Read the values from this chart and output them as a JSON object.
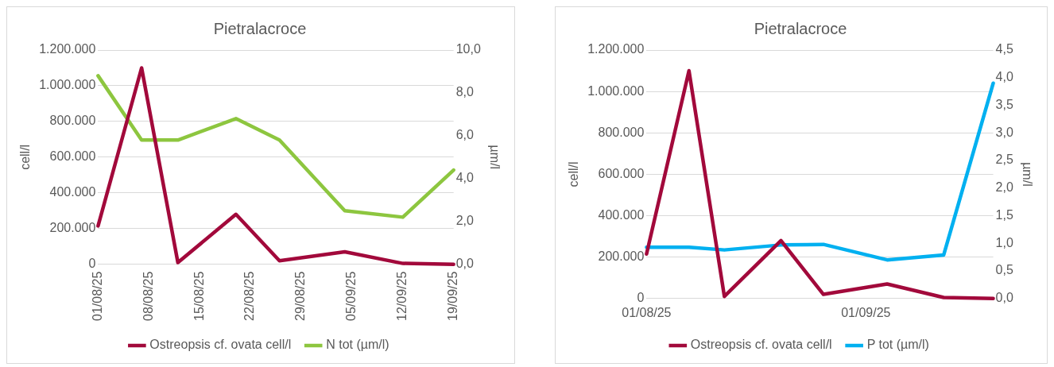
{
  "chart_data": [
    {
      "type": "line",
      "title": "Pietralacroce",
      "ylabel": "cell/l",
      "y2label": "µm/l",
      "x": [
        "--08-01",
        "--08-07",
        "--08-12",
        "--08-20",
        "--08-26",
        "--09-04",
        "--09-12",
        "--09-19"
      ],
      "series": [
        {
          "name": "Ostreopsis cf. ovata cell/l",
          "color": "#a2093b",
          "values": [
            215000,
            1100000,
            10000,
            280000,
            20000,
            70000,
            5000,
            0
          ]
        },
        {
          "name": "N tot (µm/l)",
          "color": "#8dc63f",
          "axis": "y2",
          "values": [
            8.8,
            5.8,
            5.8,
            6.8,
            5.8,
            2.5,
            2.2,
            4.4
          ]
        }
      ],
      "xlim": [
        "--08-01",
        "--09-19"
      ],
      "xticks": [
        {
          "value": "--08-01",
          "label": "01/08/25"
        },
        {
          "value": "--08-08",
          "label": "08/08/25"
        },
        {
          "value": "--08-15",
          "label": "15/08/25"
        },
        {
          "value": "--08-22",
          "label": "22/08/25"
        },
        {
          "value": "--08-29",
          "label": "29/08/25"
        },
        {
          "value": "--09-05",
          "label": "05/09/25"
        },
        {
          "value": "--09-12",
          "label": "12/09/25"
        },
        {
          "value": "--09-19",
          "label": "19/09/25"
        }
      ],
      "ylim": [
        0,
        1200000
      ],
      "yticks": [
        0,
        {
          "value": 200000,
          "label": "200.000"
        },
        {
          "value": 400000,
          "label": "400.000"
        },
        {
          "value": 600000,
          "label": "600.000"
        },
        {
          "value": 800000,
          "label": "800.000"
        },
        {
          "value": 1000000,
          "label": "1.000.000"
        },
        {
          "value": 1200000,
          "label": "1.200.000"
        }
      ],
      "y2lim": [
        0,
        10
      ],
      "y2ticks": [
        {
          "value": 0,
          "label": "0,0"
        },
        {
          "value": 2,
          "label": "2,0"
        },
        {
          "value": 4,
          "label": "4,0"
        },
        {
          "value": 6,
          "label": "6,0"
        },
        {
          "value": 8,
          "label": "8,0"
        },
        {
          "value": 10,
          "label": "10,0"
        }
      ],
      "grid": "y",
      "legend": "bottom"
    },
    {
      "type": "line",
      "title": "Pietralacroce",
      "ylabel": "cell/l",
      "y2label": "µm/l",
      "x": [
        "--08-01",
        "--08-07",
        "--08-12",
        "--08-20",
        "--08-26",
        "--09-04",
        "--09-12",
        "--09-19"
      ],
      "series": [
        {
          "name": "Ostreopsis cf. ovata cell/l",
          "color": "#a2093b",
          "values": [
            215000,
            1100000,
            10000,
            280000,
            20000,
            70000,
            5000,
            0
          ]
        },
        {
          "name": "P tot (µm/l)",
          "color": "#00b0f0",
          "axis": "y2",
          "values": [
            0.93,
            0.93,
            0.88,
            0.97,
            0.98,
            0.7,
            0.79,
            3.9
          ]
        }
      ],
      "xlim": [
        "--08-01",
        "--09-19"
      ],
      "xticks": [
        {
          "value": "--08-01",
          "label": "01/08/25"
        },
        {
          "value": "--09-01",
          "label": "01/09/25"
        }
      ],
      "ylim": [
        0,
        1200000
      ],
      "yticks": [
        0,
        {
          "value": 200000,
          "label": "200.000"
        },
        {
          "value": 400000,
          "label": "400.000"
        },
        {
          "value": 600000,
          "label": "600.000"
        },
        {
          "value": 800000,
          "label": "800.000"
        },
        {
          "value": 1000000,
          "label": "1.000.000"
        },
        {
          "value": 1200000,
          "label": "1.200.000"
        }
      ],
      "y2lim": [
        0,
        4.5
      ],
      "y2ticks": [
        {
          "value": 0,
          "label": "0,0"
        },
        {
          "value": 0.5,
          "label": "0,5"
        },
        {
          "value": 1,
          "label": "1,0"
        },
        {
          "value": 1.5,
          "label": "1,5"
        },
        {
          "value": 2,
          "label": "2,0"
        },
        {
          "value": 2.5,
          "label": "2,5"
        },
        {
          "value": 3,
          "label": "3,0"
        },
        {
          "value": 3.5,
          "label": "3,5"
        },
        {
          "value": 4,
          "label": "4,0"
        },
        {
          "value": 4.5,
          "label": "4,5"
        }
      ],
      "grid": "y",
      "legend": "bottom"
    }
  ]
}
